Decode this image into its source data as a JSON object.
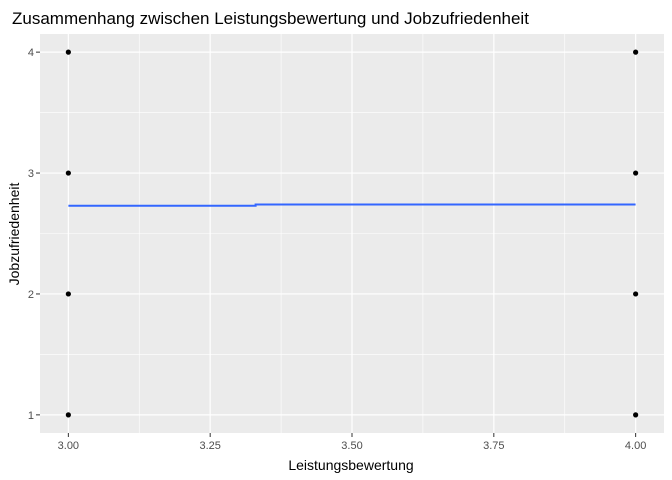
{
  "chart_data": {
    "type": "scatter",
    "title": "Zusammenhang zwischen Leistungsbewertung und Jobzufriedenheit",
    "xlabel": "Leistungsbewertung",
    "ylabel": "Jobzufriedenheit",
    "x_ticks": [
      "3.00",
      "3.25",
      "3.50",
      "3.75",
      "4.00"
    ],
    "y_ticks": [
      "1",
      "2",
      "3",
      "4"
    ],
    "xlim": [
      2.95,
      4.05
    ],
    "ylim": [
      0.85,
      4.15
    ],
    "grid": true,
    "panel_background": "#ebebeb",
    "grid_color": "#ffffff",
    "point_color": "#000000",
    "trend_color": "#3366ff",
    "points": [
      {
        "x": 3,
        "y": 1
      },
      {
        "x": 3,
        "y": 2
      },
      {
        "x": 3,
        "y": 3
      },
      {
        "x": 3,
        "y": 4
      },
      {
        "x": 4,
        "y": 1
      },
      {
        "x": 4,
        "y": 2
      },
      {
        "x": 4,
        "y": 3
      },
      {
        "x": 4,
        "y": 4
      }
    ],
    "trend_line": [
      {
        "x": 3.0,
        "y": 2.73
      },
      {
        "x": 3.33,
        "y": 2.73
      },
      {
        "x": 3.33,
        "y": 2.74
      },
      {
        "x": 4.0,
        "y": 2.74
      }
    ]
  }
}
